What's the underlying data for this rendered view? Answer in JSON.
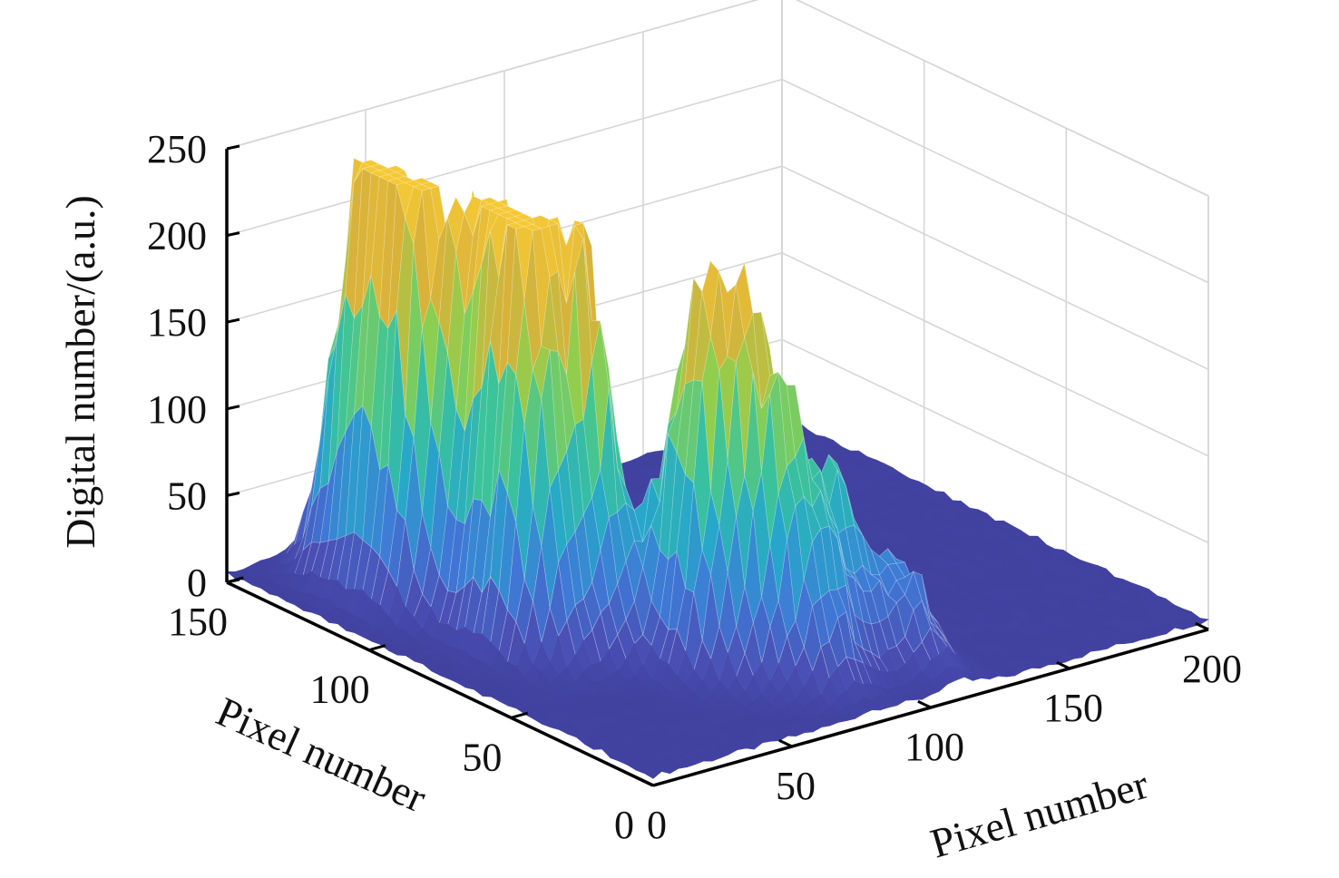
{
  "chart_data": {
    "type": "surface",
    "title": "",
    "xlabel": "Pixel number",
    "ylabel": "Pixel number",
    "zlabel": "Digital number/(a.u.)",
    "xlim": [
      0,
      200
    ],
    "ylim": [
      0,
      150
    ],
    "zlim": [
      0,
      250
    ],
    "x_ticks": [
      "0",
      "50",
      "100",
      "150",
      "200"
    ],
    "y_ticks": [
      "0",
      "50",
      "100",
      "150"
    ],
    "z_ticks": [
      "0",
      "50",
      "100",
      "150",
      "200",
      "250"
    ],
    "grid": true,
    "colormap": [
      "#3e3d99",
      "#4a4fb4",
      "#3f79d6",
      "#27a7c9",
      "#3cc39a",
      "#8fcf4e",
      "#d9b23a",
      "#f5c935"
    ],
    "peaks": [
      {
        "x": 25,
        "y": 110,
        "z": 238
      },
      {
        "x": 25,
        "y": 125,
        "z": 225
      },
      {
        "x": 35,
        "y": 92,
        "z": 250
      },
      {
        "x": 30,
        "y": 75,
        "z": 232
      },
      {
        "x": 45,
        "y": 70,
        "z": 230
      },
      {
        "x": 60,
        "y": 45,
        "z": 178
      },
      {
        "x": 70,
        "y": 35,
        "z": 165
      },
      {
        "x": 80,
        "y": 25,
        "z": 110
      },
      {
        "x": 95,
        "y": 30,
        "z": 95
      },
      {
        "x": 60,
        "y": 95,
        "z": 120
      },
      {
        "x": 50,
        "y": 110,
        "z": 90
      },
      {
        "x": 110,
        "y": 20,
        "z": 55
      }
    ]
  }
}
